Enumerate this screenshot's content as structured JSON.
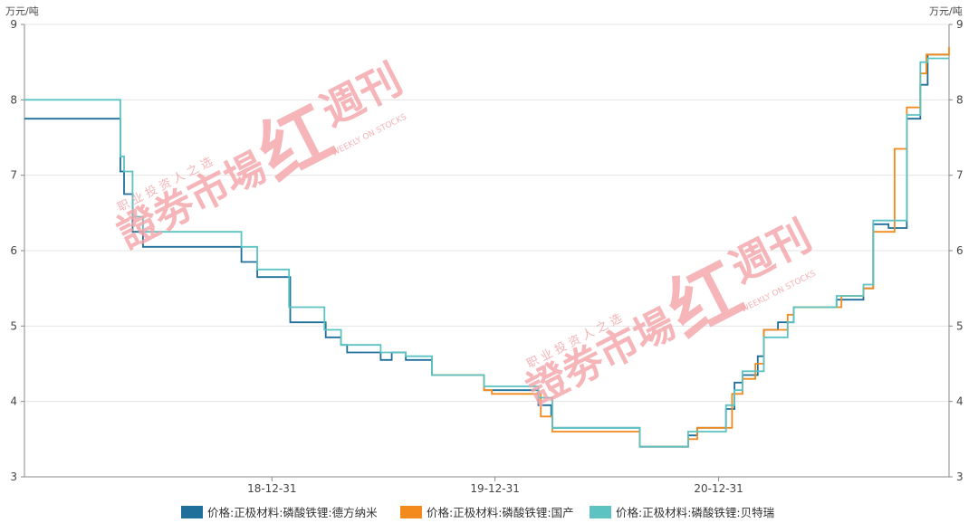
{
  "chart_data": {
    "type": "line",
    "step": true,
    "unit_left": "万元/吨",
    "unit_right": "万元/吨",
    "ylim": [
      3,
      9
    ],
    "yticks": [
      3,
      4,
      5,
      6,
      7,
      8,
      9
    ],
    "xlim": [
      "2017-11-21",
      "2022-01-12"
    ],
    "xticks": [
      {
        "label": "18-12-31",
        "date": "2018-12-31"
      },
      {
        "label": "19-12-31",
        "date": "2019-12-31"
      },
      {
        "label": "20-12-31",
        "date": "2020-12-31"
      }
    ],
    "grid": true,
    "legend_position": "bottom",
    "series": [
      {
        "name": "价格:正极材料:磷酸铁锂:德方纳米",
        "color": "#1f6f9a",
        "points": [
          [
            "2017-11-21",
            7.75
          ],
          [
            "2018-04-25",
            7.75
          ],
          [
            "2018-04-27",
            7.05
          ],
          [
            "2018-05-03",
            6.75
          ],
          [
            "2018-05-17",
            6.25
          ],
          [
            "2018-06-03",
            6.05
          ],
          [
            "2018-11-09",
            6.05
          ],
          [
            "2018-11-11",
            5.85
          ],
          [
            "2018-12-07",
            5.65
          ],
          [
            "2019-01-28",
            5.65
          ],
          [
            "2019-01-30",
            5.05
          ],
          [
            "2019-03-27",
            5.05
          ],
          [
            "2019-03-29",
            4.85
          ],
          [
            "2019-04-23",
            4.75
          ],
          [
            "2019-05-03",
            4.65
          ],
          [
            "2019-06-27",
            4.55
          ],
          [
            "2019-07-15",
            4.65
          ],
          [
            "2019-08-07",
            4.55
          ],
          [
            "2019-09-19",
            4.35
          ],
          [
            "2019-12-11",
            4.35
          ],
          [
            "2019-12-13",
            4.15
          ],
          [
            "2020-03-09",
            4.15
          ],
          [
            "2020-03-11",
            3.95
          ],
          [
            "2020-04-01",
            3.8
          ],
          [
            "2020-04-03",
            3.65
          ],
          [
            "2020-08-24",
            3.4
          ],
          [
            "2020-11-09",
            3.4
          ],
          [
            "2020-11-11",
            3.55
          ],
          [
            "2020-11-26",
            3.65
          ],
          [
            "2021-01-12",
            3.9
          ],
          [
            "2021-01-26",
            4.25
          ],
          [
            "2021-02-08",
            4.35
          ],
          [
            "2021-03-05",
            4.6
          ],
          [
            "2021-03-15",
            4.95
          ],
          [
            "2021-04-07",
            5.05
          ],
          [
            "2021-05-03",
            5.25
          ],
          [
            "2021-07-12",
            5.35
          ],
          [
            "2021-08-25",
            5.5
          ],
          [
            "2021-09-10",
            6.35
          ],
          [
            "2021-10-05",
            6.3
          ],
          [
            "2021-11-04",
            7.75
          ],
          [
            "2021-11-26",
            8.2
          ],
          [
            "2021-12-08",
            8.6
          ],
          [
            "2022-01-12",
            8.6
          ]
        ]
      },
      {
        "name": "价格:正极材料:磷酸铁锂:国产",
        "color": "#f28a1e",
        "points": [
          [
            "2019-09-19",
            4.35
          ],
          [
            "2019-12-11",
            4.35
          ],
          [
            "2019-12-13",
            4.15
          ],
          [
            "2019-12-26",
            4.1
          ],
          [
            "2020-03-13",
            4.1
          ],
          [
            "2020-03-15",
            3.8
          ],
          [
            "2020-04-03",
            3.6
          ],
          [
            "2020-08-24",
            3.4
          ],
          [
            "2020-11-09",
            3.4
          ],
          [
            "2020-11-11",
            3.5
          ],
          [
            "2020-11-26",
            3.65
          ],
          [
            "2021-01-22",
            4.1
          ],
          [
            "2021-02-08",
            4.3
          ],
          [
            "2021-03-01",
            4.5
          ],
          [
            "2021-03-15",
            4.95
          ],
          [
            "2021-04-23",
            5.15
          ],
          [
            "2021-05-03",
            5.25
          ],
          [
            "2021-07-20",
            5.4
          ],
          [
            "2021-08-25",
            5.5
          ],
          [
            "2021-09-10",
            6.25
          ],
          [
            "2021-10-15",
            7.35
          ],
          [
            "2021-11-04",
            7.9
          ],
          [
            "2021-11-26",
            8.35
          ],
          [
            "2021-12-06",
            8.6
          ],
          [
            "2022-01-12",
            8.7
          ]
        ]
      },
      {
        "name": "价格:正极材料:磷酸铁锂:贝特瑞",
        "color": "#5cc2c2",
        "points": [
          [
            "2017-11-21",
            8.0
          ],
          [
            "2018-04-25",
            8.0
          ],
          [
            "2018-04-27",
            7.25
          ],
          [
            "2018-05-03",
            7.05
          ],
          [
            "2018-05-17",
            6.45
          ],
          [
            "2018-06-03",
            6.25
          ],
          [
            "2018-11-11",
            6.05
          ],
          [
            "2018-12-07",
            5.75
          ],
          [
            "2019-01-28",
            5.25
          ],
          [
            "2019-03-27",
            4.95
          ],
          [
            "2019-04-23",
            4.75
          ],
          [
            "2019-06-27",
            4.65
          ],
          [
            "2019-08-07",
            4.6
          ],
          [
            "2019-09-19",
            4.35
          ],
          [
            "2019-12-11",
            4.35
          ],
          [
            "2019-12-13",
            4.2
          ],
          [
            "2020-03-09",
            4.2
          ],
          [
            "2020-03-11",
            4.05
          ],
          [
            "2020-04-03",
            3.65
          ],
          [
            "2020-08-24",
            3.4
          ],
          [
            "2020-11-09",
            3.4
          ],
          [
            "2020-11-11",
            3.6
          ],
          [
            "2021-01-12",
            3.95
          ],
          [
            "2021-01-26",
            4.15
          ],
          [
            "2021-02-08",
            4.4
          ],
          [
            "2021-03-15",
            4.85
          ],
          [
            "2021-04-23",
            5.05
          ],
          [
            "2021-05-03",
            5.25
          ],
          [
            "2021-07-12",
            5.4
          ],
          [
            "2021-08-25",
            5.55
          ],
          [
            "2021-09-10",
            6.4
          ],
          [
            "2021-11-04",
            7.8
          ],
          [
            "2021-11-26",
            8.5
          ],
          [
            "2021-12-08",
            8.55
          ],
          [
            "2022-01-12",
            8.55
          ]
        ]
      }
    ]
  },
  "watermark": {
    "main_text": "證劵市場",
    "script_text": "红",
    "weekly_text": "週刊",
    "tagline": "职 业 投 资 人 之 选",
    "english": "WEEKLY ON STOCKS",
    "color": "#f3a6aa"
  }
}
